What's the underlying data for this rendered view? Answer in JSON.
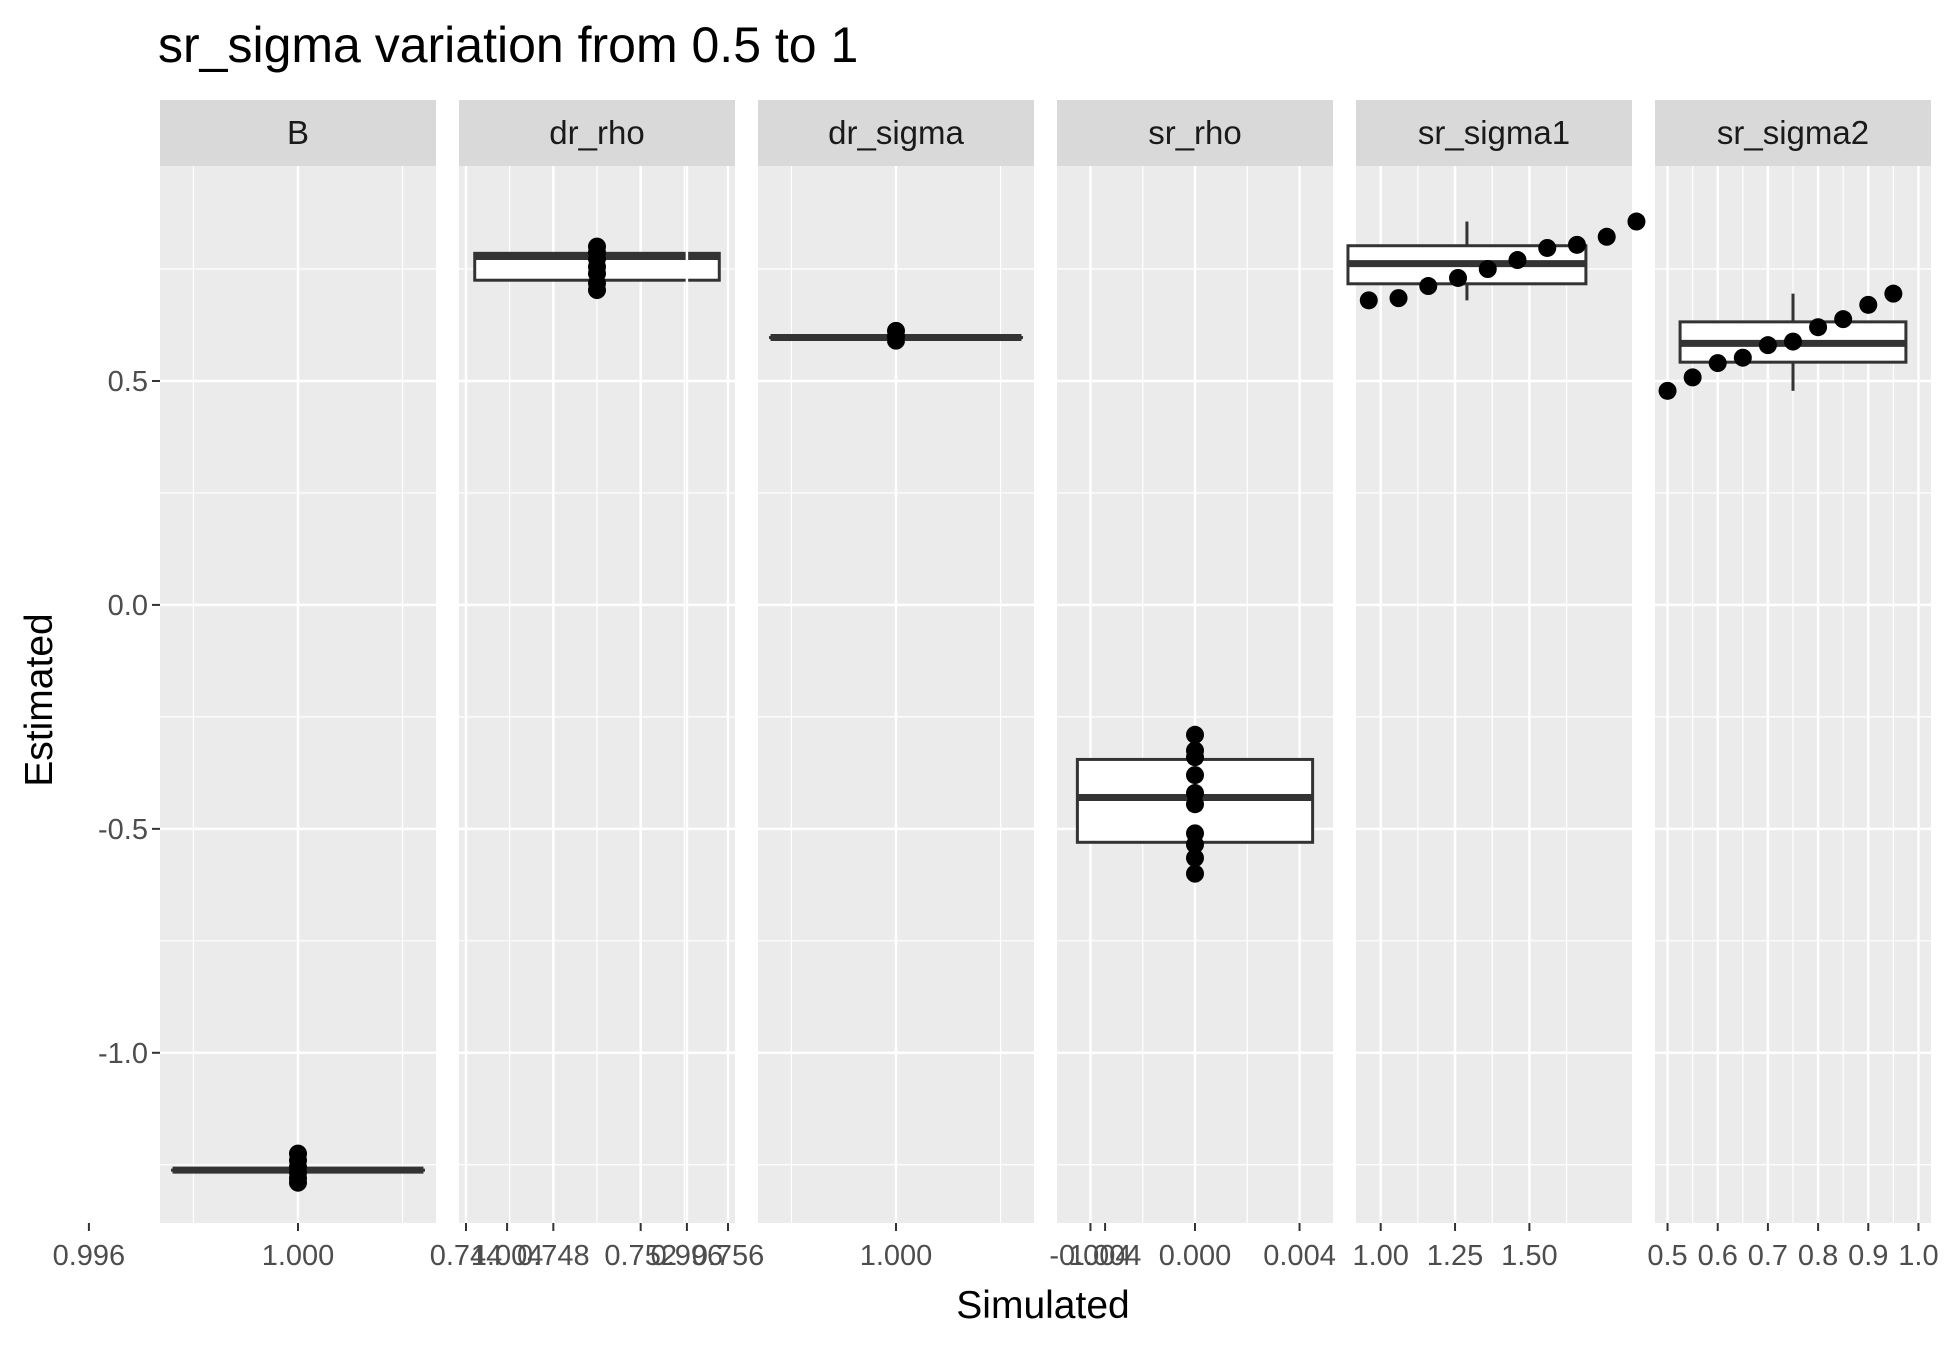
{
  "chart_data": {
    "type": "facet-boxplot",
    "title": "sr_sigma  variation from  0.5  to  1",
    "xlabel": "Simulated",
    "ylabel": "Estimated",
    "ylim": [
      -1.38,
      0.98
    ],
    "y_ticks": [
      {
        "value": 0.5,
        "label": "0.5"
      },
      {
        "value": 0.0,
        "label": "0.0"
      },
      {
        "value": -0.5,
        "label": "-0.5"
      },
      {
        "value": -1.0,
        "label": "-1.0"
      }
    ],
    "grid": true,
    "facets": [
      {
        "name": "B",
        "xlim": [
          0.99736,
          1.00264
        ],
        "x_ticks": [
          {
            "value": 0.996,
            "label": "0.996"
          },
          {
            "value": 1.0,
            "label": "1.000"
          },
          {
            "value": 1.004,
            "label": "1.004"
          }
        ],
        "box": {
          "x": 1.0,
          "half_width": 0.0024,
          "q1": -1.262,
          "median": -1.262,
          "q3": -1.262,
          "whisker_low": -1.262,
          "whisker_high": -1.262
        },
        "points": [
          [
            1.0,
            -1.225
          ],
          [
            1.0,
            -1.24
          ],
          [
            1.0,
            -1.255
          ],
          [
            1.0,
            -1.268
          ],
          [
            1.0,
            -1.28
          ],
          [
            1.0,
            -1.29
          ]
        ]
      },
      {
        "name": "dr_rho",
        "xlim": [
          0.74368,
          0.75632
        ],
        "x_ticks": [
          {
            "value": 0.744,
            "label": "0.744"
          },
          {
            "value": 0.748,
            "label": "0.748"
          },
          {
            "value": 0.752,
            "label": "0.752"
          },
          {
            "value": 0.756,
            "label": "0.756"
          }
        ],
        "box": {
          "x": 0.75,
          "half_width": 0.0056,
          "q1": 0.725,
          "median": 0.778,
          "q3": 0.785,
          "whisker_low": 0.7,
          "whisker_high": 0.8
        },
        "points": [
          [
            0.75,
            0.8
          ],
          [
            0.75,
            0.787
          ],
          [
            0.75,
            0.773
          ],
          [
            0.75,
            0.755
          ],
          [
            0.75,
            0.74
          ],
          [
            0.75,
            0.718
          ],
          [
            0.75,
            0.703
          ]
        ]
      },
      {
        "name": "dr_sigma",
        "xlim": [
          0.99736,
          1.00264
        ],
        "x_ticks": [
          {
            "value": 0.996,
            "label": "0.996"
          },
          {
            "value": 1.0,
            "label": "1.000"
          },
          {
            "value": 1.004,
            "label": "1.004"
          }
        ],
        "box": {
          "x": 1.0,
          "half_width": 0.0024,
          "q1": 0.597,
          "median": 0.597,
          "q3": 0.597,
          "whisker_low": 0.597,
          "whisker_high": 0.597
        },
        "points": [
          [
            1.0,
            0.612
          ],
          [
            1.0,
            0.6
          ],
          [
            1.0,
            0.59
          ]
        ]
      },
      {
        "name": "sr_rho",
        "xlim": [
          -0.00528,
          0.00528
        ],
        "x_ticks": [
          {
            "value": -0.004,
            "label": "-0.004"
          },
          {
            "value": 0.0,
            "label": "0.000"
          },
          {
            "value": 0.004,
            "label": "0.004"
          }
        ],
        "box": {
          "x": 0.0,
          "half_width": 0.0045,
          "q1": -0.53,
          "median": -0.43,
          "q3": -0.345,
          "whisker_low": -0.6,
          "whisker_high": -0.29
        },
        "points": [
          [
            0.0,
            -0.29
          ],
          [
            0.0,
            -0.325
          ],
          [
            0.0,
            -0.34
          ],
          [
            0.0,
            -0.38
          ],
          [
            0.0,
            -0.42
          ],
          [
            0.0,
            -0.445
          ],
          [
            0.0,
            -0.51
          ],
          [
            0.0,
            -0.535
          ],
          [
            0.0,
            -0.565
          ],
          [
            0.0,
            -0.6
          ]
        ]
      },
      {
        "name": "sr_sigma1",
        "xlim": [
          0.917,
          1.845
        ],
        "x_ticks": [
          {
            "value": 1.0,
            "label": "1.00"
          },
          {
            "value": 1.25,
            "label": "1.25"
          },
          {
            "value": 1.5,
            "label": "1.50"
          }
        ],
        "box": {
          "x": 1.29,
          "half_width": 0.4,
          "q1": 0.717,
          "median": 0.762,
          "q3": 0.802,
          "whisker_low": 0.68,
          "whisker_high": 0.856
        },
        "points": [
          [
            0.96,
            0.68
          ],
          [
            1.06,
            0.685
          ],
          [
            1.16,
            0.712
          ],
          [
            1.26,
            0.73
          ],
          [
            1.36,
            0.75
          ],
          [
            1.46,
            0.77
          ],
          [
            1.56,
            0.797
          ],
          [
            1.66,
            0.804
          ],
          [
            1.76,
            0.822
          ],
          [
            1.86,
            0.856
          ]
        ]
      },
      {
        "name": "sr_sigma2",
        "xlim": [
          0.475,
          1.025
        ],
        "x_ticks": [
          {
            "value": 0.5,
            "label": "0.5"
          },
          {
            "value": 0.6,
            "label": "0.6"
          },
          {
            "value": 0.7,
            "label": "0.7"
          },
          {
            "value": 0.8,
            "label": "0.8"
          },
          {
            "value": 0.9,
            "label": "0.9"
          },
          {
            "value": 1.0,
            "label": "1.0"
          }
        ],
        "box": {
          "x": 0.75,
          "half_width": 0.225,
          "q1": 0.542,
          "median": 0.584,
          "q3": 0.632,
          "whisker_low": 0.478,
          "whisker_high": 0.695
        },
        "points": [
          [
            0.5,
            0.478
          ],
          [
            0.55,
            0.508
          ],
          [
            0.6,
            0.54
          ],
          [
            0.65,
            0.552
          ],
          [
            0.7,
            0.58
          ],
          [
            0.75,
            0.588
          ],
          [
            0.8,
            0.62
          ],
          [
            0.85,
            0.638
          ],
          [
            0.9,
            0.67
          ],
          [
            0.95,
            0.695
          ]
        ]
      }
    ]
  }
}
